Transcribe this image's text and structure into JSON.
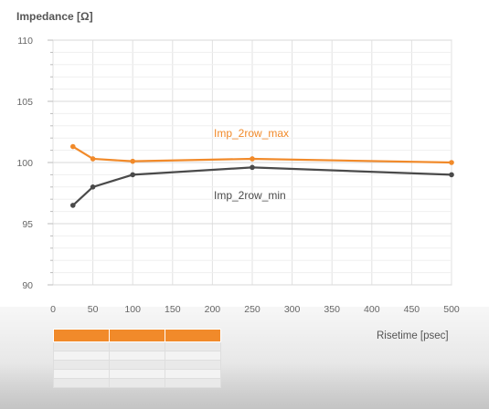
{
  "chart_data": {
    "type": "line",
    "ylabel": "Impedance [Ω]",
    "xlabel": "Risetime [psec]",
    "xlim": [
      0,
      500
    ],
    "ylim": [
      90,
      110
    ],
    "xticks": [
      "0",
      "50",
      "100",
      "150",
      "200",
      "250",
      "300",
      "350",
      "400",
      "450",
      "500"
    ],
    "yticks": [
      "90",
      "95",
      "100",
      "105",
      "110"
    ],
    "grid": true,
    "x": [
      25,
      50,
      100,
      250,
      500
    ],
    "series": [
      {
        "name": "Imp_2row_max",
        "color": "#f18a2a",
        "values": [
          101.3,
          100.3,
          100.1,
          100.3,
          100.0
        ]
      },
      {
        "name": "Imp_2row_min",
        "color": "#4a4a4a",
        "values": [
          96.5,
          98.0,
          99.0,
          99.6,
          99.0
        ]
      }
    ]
  }
}
